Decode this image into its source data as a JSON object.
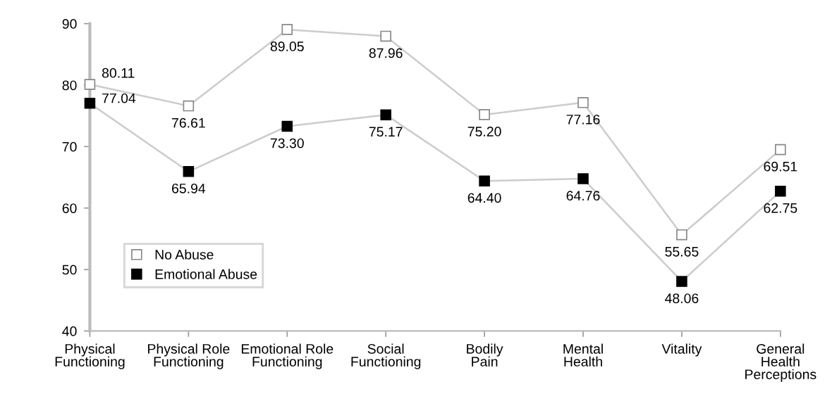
{
  "chart_data": {
    "type": "line",
    "categories": [
      "Physical\nFunctioning",
      "Physical Role\nFunctioning",
      "Emotional Role\nFunctioning",
      "Social\nFunctioning",
      "Bodily\nPain",
      "Mental\nHealth",
      "Vitality",
      "General\nHealth\nPerceptions"
    ],
    "series": [
      {
        "name": "No Abuse",
        "color": "#ffffff",
        "values": [
          80.11,
          76.61,
          89.05,
          87.96,
          75.2,
          77.16,
          55.65,
          69.51
        ],
        "value_labels": [
          "80.11",
          "76.61",
          "89.05",
          "87.96",
          "75.20",
          "77.16",
          "55.65",
          "69.51"
        ]
      },
      {
        "name": "Emotional Abuse",
        "color": "#000000",
        "values": [
          77.04,
          65.94,
          73.3,
          75.17,
          64.4,
          64.76,
          48.06,
          62.75
        ],
        "value_labels": [
          "77.04",
          "65.94",
          "73.30",
          "75.17",
          "64.40",
          "64.76",
          "48.06",
          "62.75"
        ]
      }
    ],
    "ylim": [
      40,
      90
    ],
    "yticks": [
      40,
      50,
      60,
      70,
      80,
      90
    ],
    "grid": false,
    "legend": "bottom left",
    "marker": "square",
    "line_style": "solid"
  }
}
